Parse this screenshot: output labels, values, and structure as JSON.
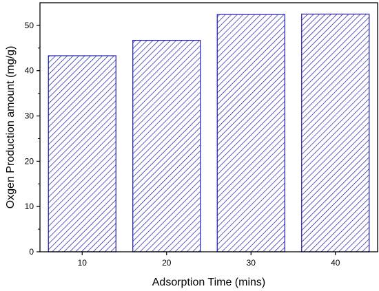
{
  "chart_data": {
    "type": "bar",
    "title": "",
    "xlabel": "Adsorption Time (mins)",
    "ylabel": "Oxgen Production amount (mg/g)",
    "categories": [
      "10",
      "20",
      "30",
      "40"
    ],
    "values": [
      43.3,
      46.7,
      52.4,
      52.5
    ],
    "ylim": [
      0,
      55
    ],
    "yticks": [
      0,
      10,
      20,
      30,
      40,
      50
    ],
    "grid": false,
    "legend": "none",
    "bar_fill": "hatched",
    "bar_color": "#1a1aa8",
    "axis_color": "#000000"
  }
}
